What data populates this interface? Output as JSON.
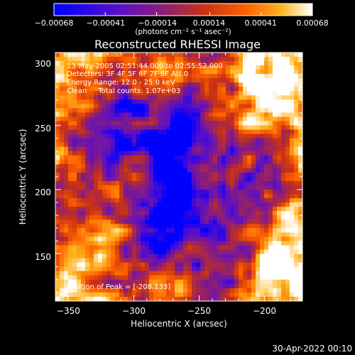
{
  "chart_data": {
    "type": "heatmap",
    "title": "Reconstructed RHESSI Image",
    "xlabel": "Heliocentric X (arcsec)",
    "ylabel": "Heliocentric Y (arcsec)",
    "xlim": [
      -360,
      -171
    ],
    "ylim": [
      113,
      307
    ],
    "x_ticks": [
      -350,
      -300,
      -250,
      -200
    ],
    "y_ticks": [
      150,
      200,
      250,
      300
    ],
    "x_tick_labels": [
      "−350",
      "−300",
      "−250",
      "−200"
    ],
    "y_tick_labels": [
      "150",
      "200",
      "250",
      "300"
    ],
    "colorbar": {
      "range": [
        -0.00068,
        0.00068
      ],
      "ticks": [
        -0.00068,
        -0.00041,
        -0.00014,
        0.00014,
        0.00041,
        0.00068
      ],
      "tick_labels": [
        "−0.00068",
        "−0.00041",
        "−0.00014",
        "0.00014",
        "0.00041",
        "0.00068"
      ],
      "unit_label": "(photons cm⁻² s⁻¹ asec⁻²)",
      "colormap": [
        "#0000ff",
        "#5a0fc8",
        "#8c1e78",
        "#c83214",
        "#ff6400",
        "#ffb41e",
        "#ffffff"
      ]
    },
    "annotations": [
      "13-May-2005 02:51:44.000 to 02:55:52.000",
      "Detectors: 3F 4F 5F 6F 7F 8F Att 0",
      "Energy Range: 12.0 - 25.0 keV",
      "Clean     Total counts: 1.07e+03",
      "Position of Peak = [-208,133]"
    ],
    "peak": {
      "x": -208,
      "y": 133
    }
  },
  "timestamp": "30-Apr-2022 00:10"
}
